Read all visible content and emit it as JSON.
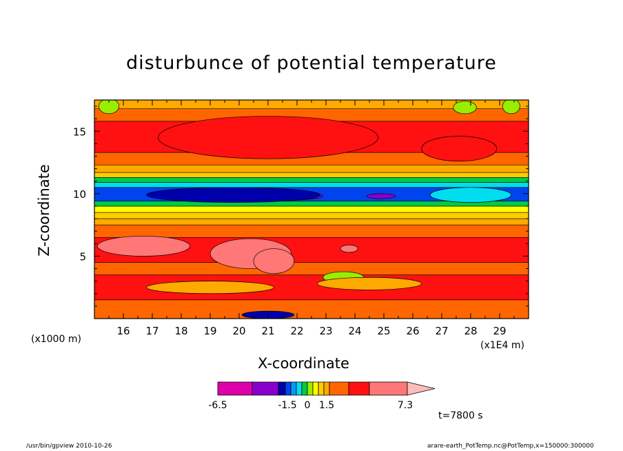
{
  "chart_data": {
    "type": "heatmap",
    "subtype": "filled contour",
    "title": "disturbunce of potential temperature",
    "xlabel": "X-coordinate",
    "ylabel": "Z-coordinate",
    "x_unit": "(x1E4 m)",
    "y_unit": "(x1000 m)",
    "x_ticks": [
      16,
      17,
      18,
      19,
      20,
      21,
      22,
      23,
      24,
      25,
      26,
      27,
      28,
      29
    ],
    "y_ticks": [
      5,
      10,
      15
    ],
    "xlim": [
      15.0,
      30.0
    ],
    "ylim": [
      0.0,
      17.5
    ],
    "colorbar": {
      "labels": [
        "-6.5",
        "-1.5",
        "0",
        "1.5",
        "7.3"
      ],
      "label_values": [
        -6.5,
        -1.5,
        0,
        1.5,
        7.3
      ],
      "colors": [
        "#dd00aa",
        "#8800cc",
        "#0000aa",
        "#0044ee",
        "#0099ff",
        "#00ddee",
        "#00cc44",
        "#99ee00",
        "#ffff00",
        "#ffcc00",
        "#ffaa00",
        "#ff6600",
        "#ff1111",
        "#ff7777",
        "#ffbbbb"
      ]
    },
    "bands": [
      {
        "z": [
          0.0,
          1.5
        ],
        "value": 2.6
      },
      {
        "z": [
          1.5,
          3.5
        ],
        "value": 3.2
      },
      {
        "z": [
          3.5,
          4.5
        ],
        "value": 2.6
      },
      {
        "z": [
          4.5,
          6.5
        ],
        "value": 3.6
      },
      {
        "z": [
          6.5,
          7.5
        ],
        "value": 2.6
      },
      {
        "z": [
          7.5,
          8.0
        ],
        "value": 1.9
      },
      {
        "z": [
          8.0,
          8.5
        ],
        "value": 1.2
      },
      {
        "z": [
          8.5,
          9.0
        ],
        "value": 0.8
      },
      {
        "z": [
          9.0,
          9.4
        ],
        "value": 0.3
      },
      {
        "z": [
          9.4,
          10.5
        ],
        "value": -1.2
      },
      {
        "z": [
          10.5,
          10.9
        ],
        "value": -0.5
      },
      {
        "z": [
          10.9,
          11.3
        ],
        "value": 0.3
      },
      {
        "z": [
          11.3,
          11.7
        ],
        "value": 1.2
      },
      {
        "z": [
          11.7,
          12.3
        ],
        "value": 1.9
      },
      {
        "z": [
          12.3,
          13.3
        ],
        "value": 2.6
      },
      {
        "z": [
          13.3,
          15.8
        ],
        "value": 3.2
      },
      {
        "z": [
          15.8,
          16.8
        ],
        "value": 2.6
      },
      {
        "z": [
          16.8,
          17.5
        ],
        "value": 1.9
      }
    ],
    "blobs": [
      {
        "x": 16.7,
        "z": 5.8,
        "rx": 1.6,
        "rz": 0.8,
        "value": 4.5
      },
      {
        "x": 20.4,
        "z": 5.2,
        "rx": 1.4,
        "rz": 1.2,
        "value": 4.5
      },
      {
        "x": 21.2,
        "z": 4.6,
        "rx": 0.7,
        "rz": 1.0,
        "value": 4.5
      },
      {
        "x": 23.8,
        "z": 5.6,
        "rx": 0.3,
        "rz": 0.3,
        "value": 4.5
      },
      {
        "x": 20.5,
        "z": 9.8,
        "rx": 2.4,
        "rz": 0.4,
        "value": -3.5
      },
      {
        "x": 24.9,
        "z": 9.8,
        "rx": 0.5,
        "rz": 0.2,
        "value": -3.5
      },
      {
        "x": 19.8,
        "z": 9.9,
        "rx": 3.0,
        "rz": 0.6,
        "value": -2.0
      },
      {
        "x": 28.0,
        "z": 9.9,
        "rx": 1.4,
        "rz": 0.6,
        "value": -0.4
      },
      {
        "x": 21.0,
        "z": 14.5,
        "rx": 3.8,
        "rz": 1.7,
        "value": 3.6
      },
      {
        "x": 27.6,
        "z": 13.6,
        "rx": 1.3,
        "rz": 1.0,
        "value": 3.6
      },
      {
        "x": 23.6,
        "z": 3.3,
        "rx": 0.7,
        "rz": 0.45,
        "value": 0.5
      },
      {
        "x": 19.0,
        "z": 2.5,
        "rx": 2.2,
        "rz": 0.5,
        "value": 2.0
      },
      {
        "x": 24.5,
        "z": 2.8,
        "rx": 1.8,
        "rz": 0.5,
        "value": 2.0
      },
      {
        "x": 29.4,
        "z": 17.0,
        "rx": 0.3,
        "rz": 0.6,
        "value": 0.5
      },
      {
        "x": 15.5,
        "z": 17.0,
        "rx": 0.35,
        "rz": 0.6,
        "value": 0.5
      },
      {
        "x": 27.8,
        "z": 16.9,
        "rx": 0.4,
        "rz": 0.5,
        "value": 0.5
      },
      {
        "x": 21.0,
        "z": 0.3,
        "rx": 0.9,
        "rz": 0.3,
        "value": -2.0
      }
    ]
  },
  "time_label": "t=7800 s",
  "footer": {
    "left": "/usr/bin/gpview   2010-10-26",
    "right": "arare-earth_PotTemp.nc@PotTemp,x=150000:300000"
  }
}
